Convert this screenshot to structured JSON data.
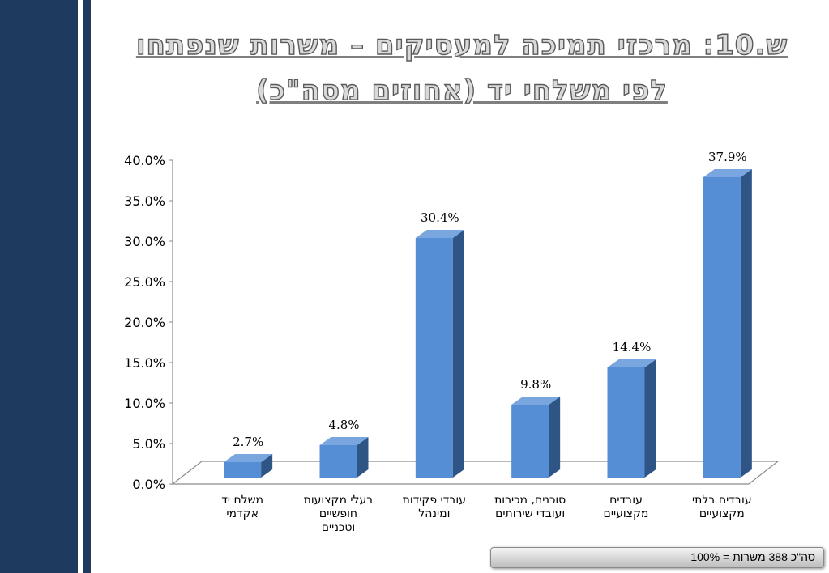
{
  "title_line1": "ש.10: מרכזי תמיכה למעסיקים – משרות שנפתחו",
  "title_line2": "לפי משלחי יד (אחוזים מסה\"כ)",
  "footer_note": "סה\"כ  388 משרות = 100%",
  "colors": {
    "bar_front": "#558ed5",
    "bar_side": "#2e5586",
    "bar_top": "#7aa6e0",
    "sidebar": "#1f3a5f"
  },
  "chart_data": {
    "type": "bar",
    "categories": [
      [
        "משלח יד",
        "אקדמי"
      ],
      [
        "בעלי מקצועות",
        "חופשיים",
        "וטכניים"
      ],
      [
        "עובדי פקידות",
        "ומינהל"
      ],
      [
        "סוכנים, מכירות",
        "ועובדי שירותים"
      ],
      [
        "עובדים",
        "מקצועיים"
      ],
      [
        "עובדים בלתי",
        "מקצועיים"
      ]
    ],
    "values": [
      2.7,
      4.8,
      30.4,
      9.8,
      14.4,
      37.9
    ],
    "value_labels": [
      "2.7%",
      "4.8%",
      "30.4%",
      "9.8%",
      "14.4%",
      "37.9%"
    ],
    "y_ticks": [
      "0.0%",
      "5.0%",
      "10.0%",
      "15.0%",
      "20.0%",
      "25.0%",
      "30.0%",
      "35.0%",
      "40.0%"
    ],
    "ylim": [
      0,
      40
    ],
    "grid": false,
    "style": "3d"
  }
}
